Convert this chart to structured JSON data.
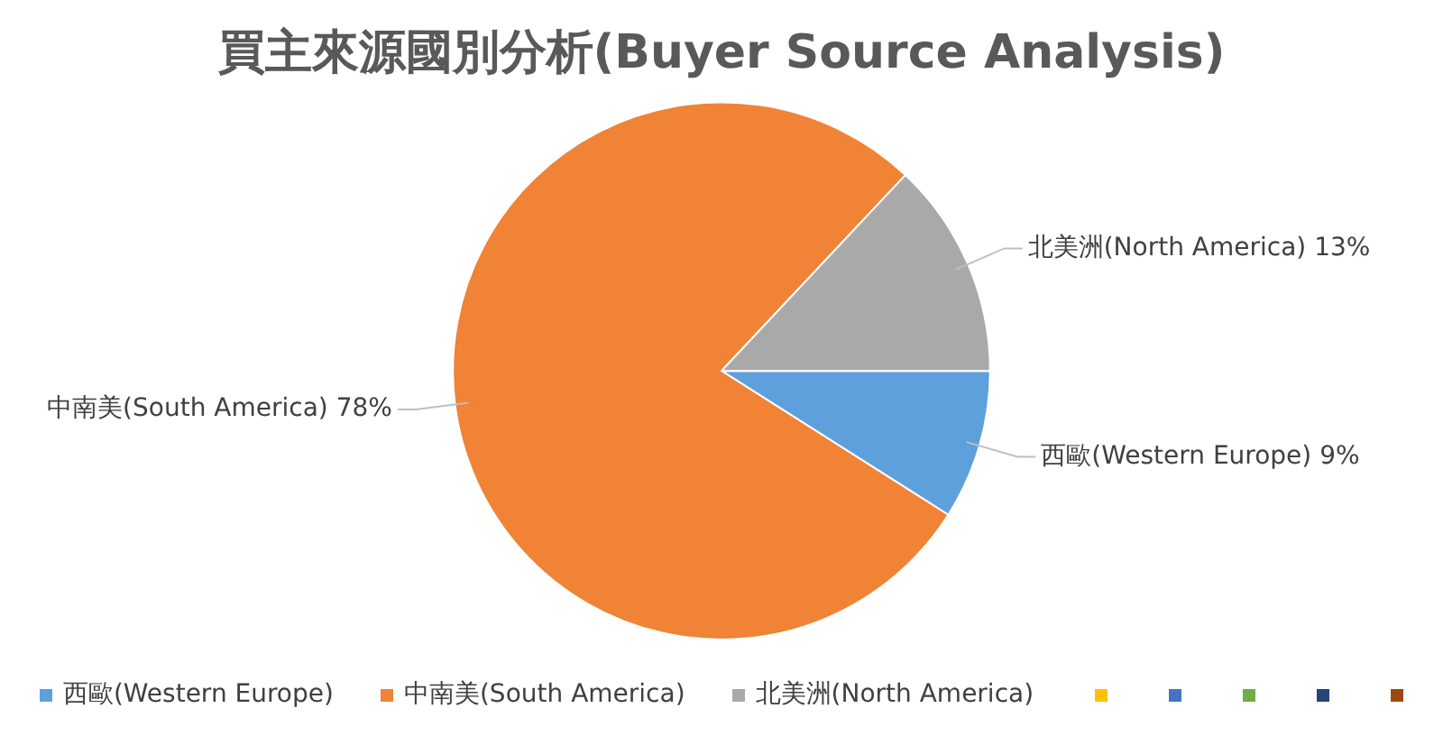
{
  "chart_data": {
    "type": "pie",
    "title": "買主來源國別分析(Buyer Source Analysis)",
    "categories": [
      "西歐(Western Europe)",
      "中南美(South America)",
      "北美洲(North America)"
    ],
    "values": [
      9,
      78,
      13
    ],
    "value_labels": [
      "9%",
      "78%",
      "13%"
    ],
    "colors": [
      "#5ea0dc",
      "#f08336",
      "#a9a9a9"
    ],
    "legend": "bottom"
  }
}
